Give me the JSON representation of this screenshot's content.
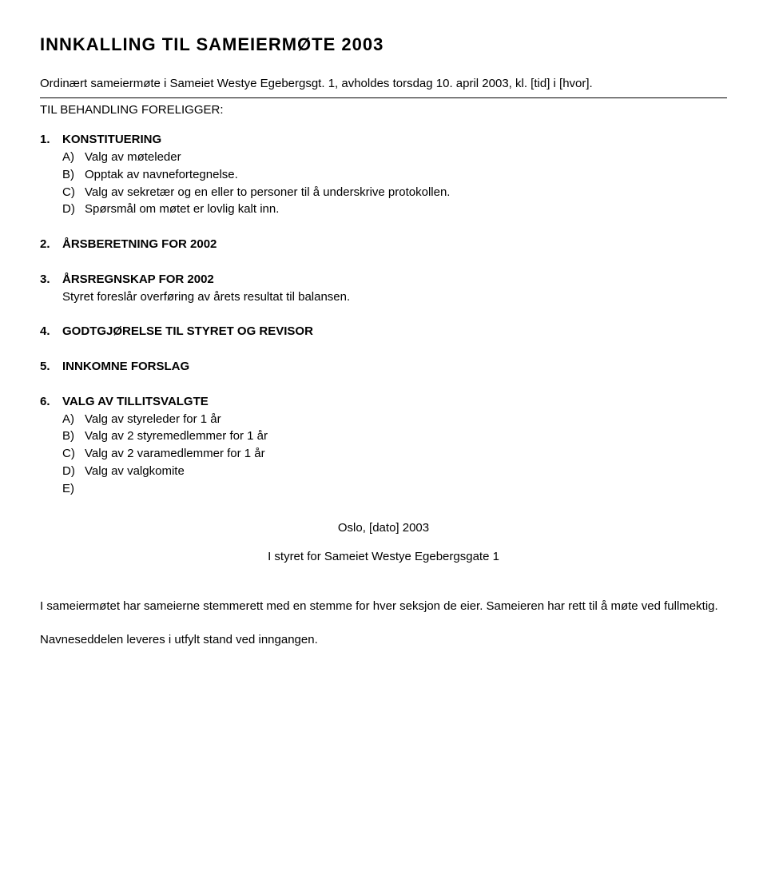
{
  "title": "INNKALLING  TIL  SAMEIERMØTE  2003",
  "intro": "Ordinært sameiermøte i Sameiet Westye Egebergsgt. 1, avholdes torsdag 10. april 2003, kl. [tid] i [hvor].",
  "subhead": "TIL BEHANDLING FORELIGGER:",
  "items": [
    {
      "num": "1.",
      "title": "KONSTITUERING",
      "subs": [
        {
          "letter": "A)",
          "text": "Valg av møteleder"
        },
        {
          "letter": "B)",
          "text": "Opptak av navnefortegnelse."
        },
        {
          "letter": "C)",
          "text": "Valg av sekretær og en eller to personer til å underskrive protokollen."
        },
        {
          "letter": "D)",
          "text": "Spørsmål om møtet er lovlig kalt inn."
        }
      ]
    },
    {
      "num": "2.",
      "title": "ÅRSBERETNING FOR 2002"
    },
    {
      "num": "3.",
      "title": "ÅRSREGNSKAP FOR 2002",
      "body": "Styret foreslår overføring av årets resultat til balansen."
    },
    {
      "num": "4.",
      "title": "GODTGJØRELSE TIL STYRET OG REVISOR"
    },
    {
      "num": "5.",
      "title": "INNKOMNE FORSLAG"
    },
    {
      "num": "6.",
      "title": "VALG AV TILLITSVALGTE",
      "subs": [
        {
          "letter": "A)",
          "text": "Valg av styreleder for 1 år"
        },
        {
          "letter": "B)",
          "text": "Valg av 2 styremedlemmer for 1 år"
        },
        {
          "letter": "C)",
          "text": "Valg av 2 varamedlemmer for 1 år"
        },
        {
          "letter": "D)",
          "text": "Valg av valgkomite"
        },
        {
          "letter": "E)",
          "text": ""
        }
      ]
    }
  ],
  "center1": "Oslo, [dato] 2003",
  "center2": "I styret for Sameiet Westye Egebergsgate 1",
  "footer1": "I sameiermøtet har sameierne stemmerett med en stemme for hver seksjon de eier. Sameieren har rett til å møte ved fullmektig.",
  "footer2": "Navneseddelen leveres i utfylt stand ved inngangen."
}
